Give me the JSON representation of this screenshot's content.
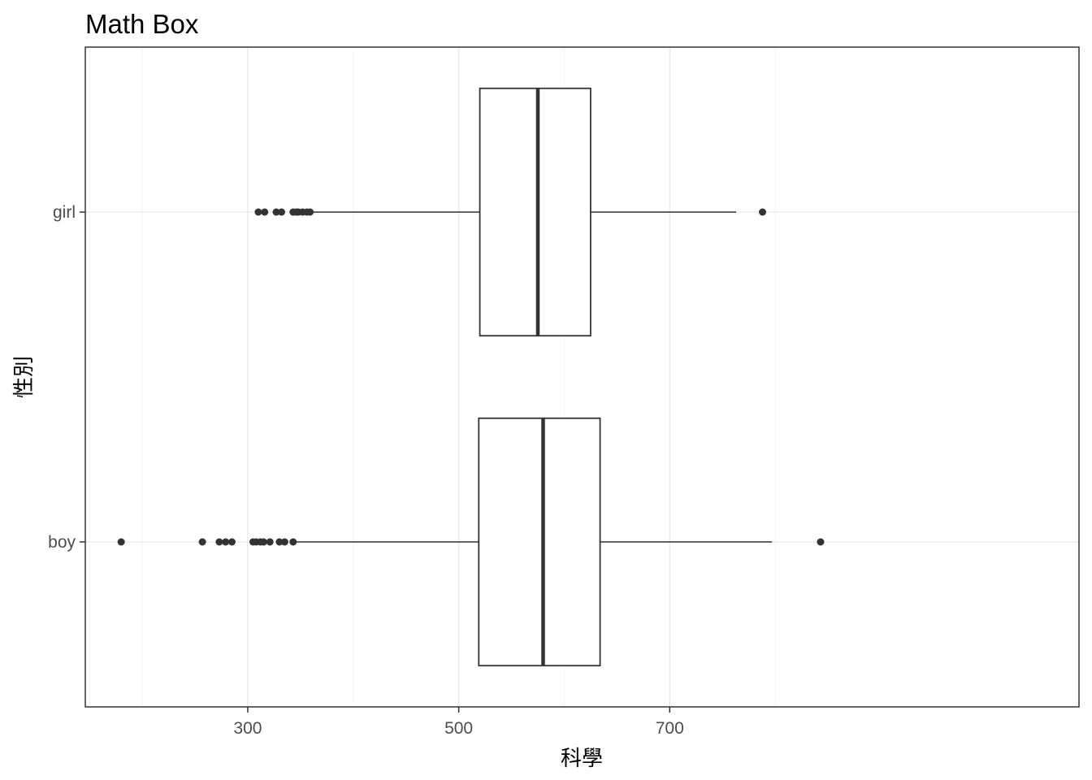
{
  "chart_data": {
    "type": "boxplot",
    "orientation": "horizontal",
    "title": "Math Box",
    "xlabel": "科學",
    "ylabel": "性別",
    "xlim": [
      146,
      1088
    ],
    "x_ticks": [
      300,
      500,
      700
    ],
    "x_minor_ticks": [
      200,
      400,
      600,
      800
    ],
    "grid": true,
    "categories": [
      "boy",
      "girl"
    ],
    "boxes": [
      {
        "category": "boy",
        "whisker_low": 344,
        "q1": 519,
        "median": 580,
        "q3": 634,
        "whisker_high": 797,
        "outliers": [
          180,
          257,
          273,
          279,
          285,
          305,
          308,
          312,
          315,
          321,
          330,
          335,
          343,
          843
        ]
      },
      {
        "category": "girl",
        "whisker_low": 361,
        "q1": 520,
        "median": 575,
        "q3": 625,
        "whisker_high": 763,
        "outliers": [
          310,
          316,
          327,
          332,
          343,
          346,
          348,
          352,
          356,
          359,
          788
        ]
      }
    ],
    "colors": {
      "box_line": "#333333",
      "panel_border": "#333333",
      "grid_major": "#ebebeb",
      "grid_minor": "#f2f2f2",
      "point": "#333333"
    }
  }
}
